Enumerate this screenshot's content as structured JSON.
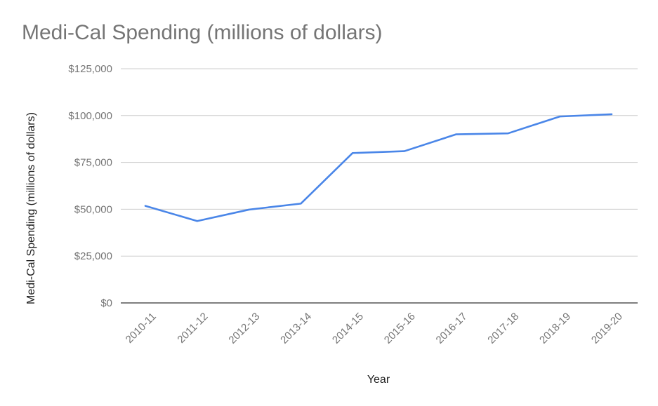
{
  "chart_data": {
    "type": "line",
    "title": "Medi-Cal Spending (millions of dollars)",
    "xlabel": "Year",
    "ylabel": "Medi-Cal Spending (millions of dollars)",
    "categories": [
      "2010-11",
      "2011-12",
      "2012-13",
      "2013-14",
      "2014-15",
      "2015-16",
      "2016-17",
      "2017-18",
      "2018-19",
      "2019-20"
    ],
    "series": [
      {
        "values": [
          51800,
          43700,
          49800,
          53000,
          80000,
          81000,
          90000,
          90500,
          99500,
          100700
        ],
        "color": "#4a86e8"
      }
    ],
    "ylim": [
      0,
      125000
    ],
    "yticks": [
      0,
      25000,
      50000,
      75000,
      100000,
      125000
    ],
    "ytick_labels": [
      "$0",
      "$25,000",
      "$50,000",
      "$75,000",
      "$100,000",
      "$125,000"
    ],
    "grid": true,
    "legend": "none",
    "colors": {
      "grid": "#cccccc",
      "baseline": "#333333",
      "tick_text": "#757575",
      "title_text": "#757575",
      "axis_title_text": "#222222"
    }
  }
}
